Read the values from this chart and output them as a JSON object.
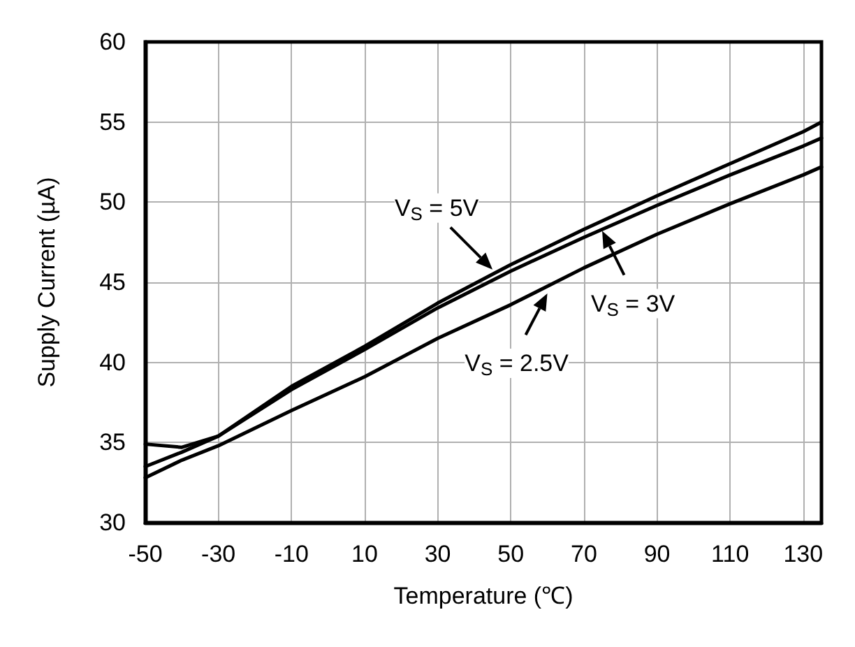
{
  "chart_data": {
    "type": "line",
    "xlabel": "Temperature (℃)",
    "ylabel": "Supply Current (µA)",
    "x": [
      -50,
      -40,
      -30,
      -10,
      10,
      30,
      50,
      70,
      90,
      110,
      130,
      135
    ],
    "series": [
      {
        "color": "#000000",
        "values": [
          34.9,
          34.7,
          35.4,
          38.5,
          41.0,
          43.7,
          46.1,
          48.3,
          50.4,
          52.4,
          54.4,
          55.0
        ]
      },
      {
        "color": "#000000",
        "values": [
          33.5,
          34.4,
          35.4,
          38.3,
          40.8,
          43.4,
          45.7,
          47.8,
          49.8,
          51.7,
          53.5,
          54.0
        ]
      },
      {
        "color": "#000000",
        "values": [
          32.8,
          33.9,
          34.8,
          37.0,
          39.1,
          41.5,
          43.6,
          45.9,
          48.0,
          49.9,
          51.7,
          52.2
        ]
      }
    ],
    "xlim": [
      -50,
      135
    ],
    "ylim": [
      30,
      60
    ],
    "xticks": [
      -50,
      -30,
      -10,
      10,
      30,
      50,
      70,
      90,
      110,
      130
    ],
    "yticks": [
      30,
      35,
      40,
      45,
      50,
      55,
      60
    ],
    "grid": true,
    "marker": "none",
    "line_style": "solid",
    "annotations": [
      {
        "text": "V$_{S}$ = 5V",
        "x": 45,
        "y": 45.8
      },
      {
        "text": "V$_{S}$ = 3V",
        "x": 75,
        "y": 48.2
      },
      {
        "text": "V$_{S}$ = 2.5V",
        "x": 60,
        "y": 44.3
      }
    ]
  }
}
